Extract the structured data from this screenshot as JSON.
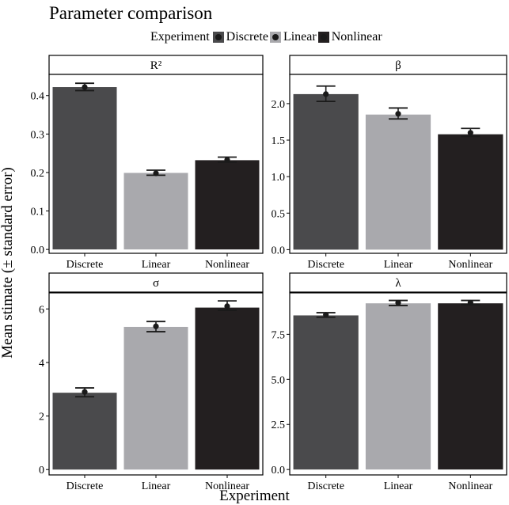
{
  "title": "Parameter comparison",
  "legend": {
    "title": "Experiment",
    "items": [
      {
        "label": "Discrete",
        "color": "#4a4a4c"
      },
      {
        "label": "Linear",
        "color": "#a9a9ad"
      },
      {
        "label": "Nonlinear",
        "color": "#231f20"
      }
    ]
  },
  "xlabel": "Experiment",
  "ylabel": "Mean stimate (± standard error)",
  "chart_data": [
    {
      "type": "bar",
      "facet": "R²",
      "categories": [
        "Discrete",
        "Linear",
        "Nonlinear"
      ],
      "values": [
        0.422,
        0.199,
        0.232
      ],
      "point": [
        0.422,
        0.198,
        0.233
      ],
      "error_low": [
        0.413,
        0.193,
        0.227
      ],
      "error_high": [
        0.432,
        0.206,
        0.24
      ],
      "ylim": [
        -0.01,
        0.455
      ],
      "yticks": [
        0.0,
        0.1,
        0.2,
        0.3,
        0.4
      ],
      "yticklabels": [
        "0.0",
        "0.1",
        "0.2",
        "0.3",
        "0.4"
      ]
    },
    {
      "type": "bar",
      "facet": "β",
      "categories": [
        "Discrete",
        "Linear",
        "Nonlinear"
      ],
      "values": [
        2.13,
        1.85,
        1.58
      ],
      "point": [
        2.13,
        1.86,
        1.6
      ],
      "error_low": [
        2.03,
        1.79,
        1.55
      ],
      "error_high": [
        2.24,
        1.94,
        1.66
      ],
      "ylim": [
        -0.05,
        2.4
      ],
      "yticks": [
        0.0,
        0.5,
        1.0,
        1.5,
        2.0
      ],
      "yticklabels": [
        "0.0",
        "0.5",
        "1.0",
        "1.5",
        "2.0"
      ]
    },
    {
      "type": "bar",
      "facet": "σ",
      "categories": [
        "Discrete",
        "Linear",
        "Nonlinear"
      ],
      "values": [
        2.87,
        5.33,
        6.05
      ],
      "point": [
        2.9,
        5.35,
        6.1
      ],
      "error_low": [
        2.72,
        5.15,
        5.95
      ],
      "error_high": [
        3.05,
        5.53,
        6.3
      ],
      "ylim": [
        -0.2,
        6.6
      ],
      "yticks": [
        0,
        2,
        4,
        6
      ],
      "yticklabels": [
        "0",
        "2",
        "4",
        "6"
      ]
    },
    {
      "type": "bar",
      "facet": "λ",
      "categories": [
        "Discrete",
        "Linear",
        "Nonlinear"
      ],
      "values": [
        8.55,
        9.22,
        9.22
      ],
      "point": [
        8.58,
        9.25,
        9.25
      ],
      "error_low": [
        8.45,
        9.1,
        9.15
      ],
      "error_high": [
        8.7,
        9.38,
        9.38
      ],
      "ylim": [
        -0.3,
        9.8
      ],
      "yticks": [
        0.0,
        2.5,
        5.0,
        7.5
      ],
      "yticklabels": [
        "0.0",
        "2.5",
        "5.0",
        "7.5"
      ]
    }
  ]
}
